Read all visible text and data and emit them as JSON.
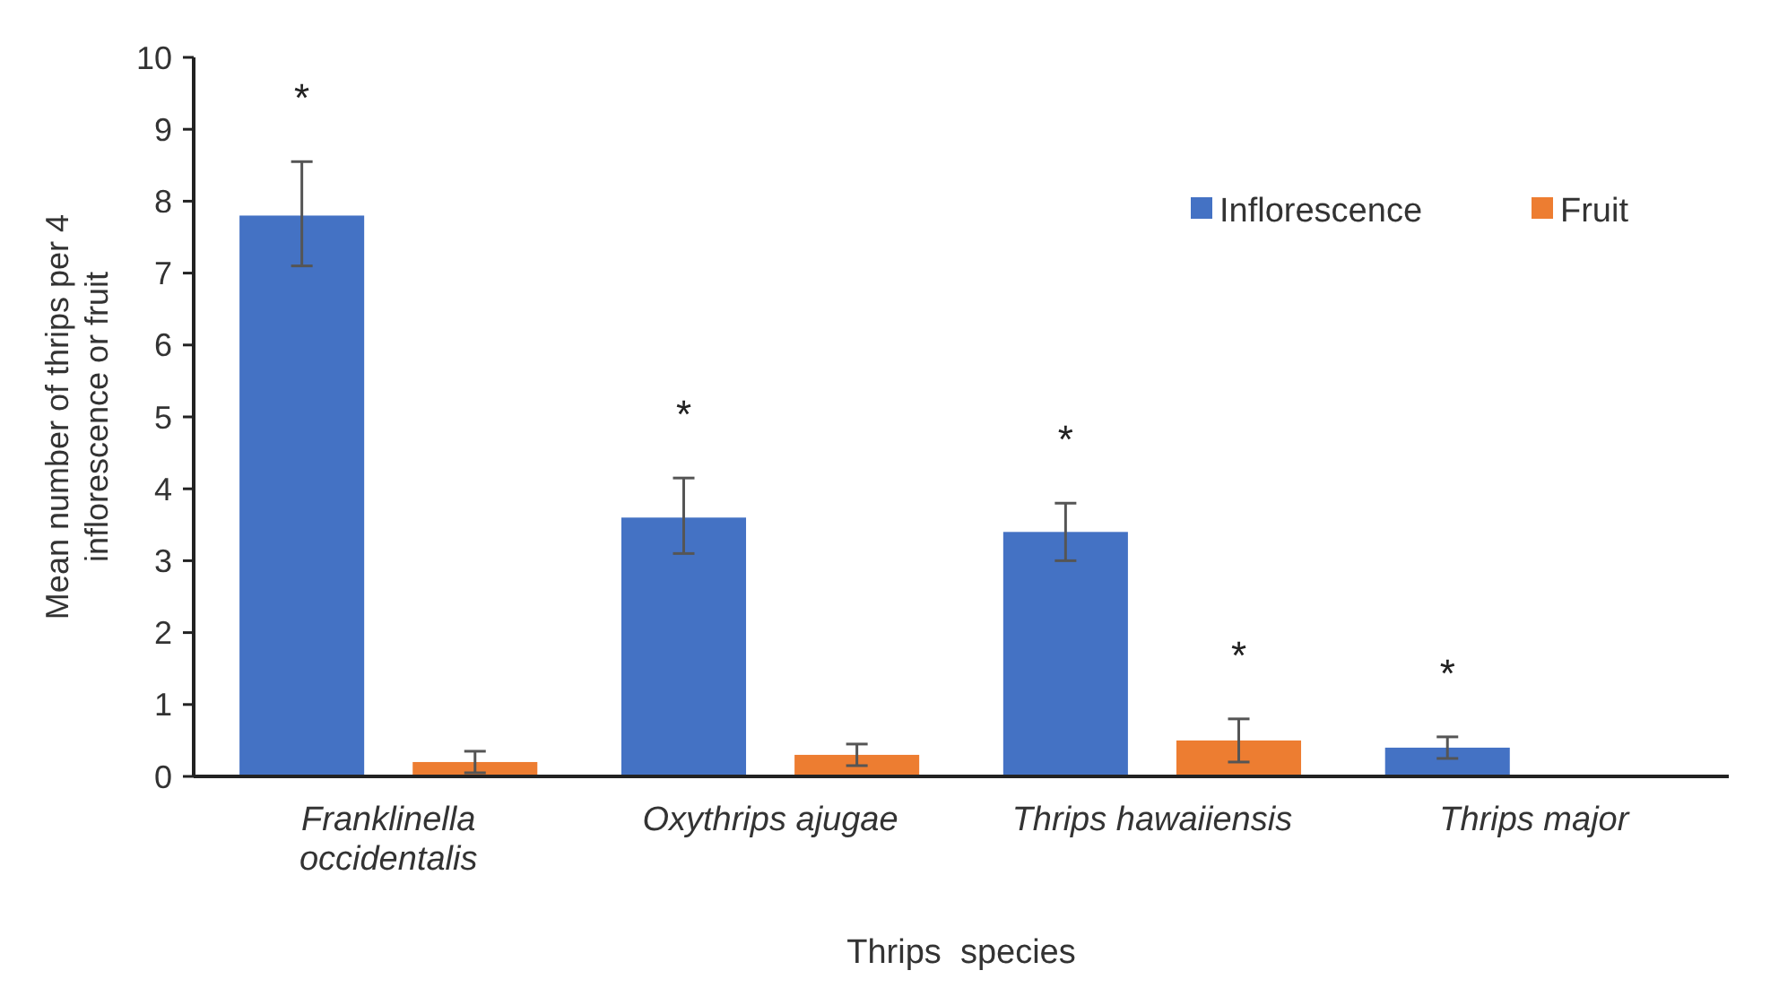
{
  "chart_data": {
    "type": "bar",
    "xlabel": "Thrips  species",
    "ylabel": "Mean number of thrips per 4 inflorescence or fruit",
    "categories": [
      "Franklinella occidentalis",
      "Oxythrips ajugae",
      "Thrips hawaiiensis",
      "Thrips major"
    ],
    "series": [
      {
        "name": "Inflorescence",
        "color": "#4472c4",
        "values": [
          7.8,
          3.6,
          3.4,
          0.4
        ],
        "errors": [
          [
            7.1,
            8.55
          ],
          [
            3.1,
            4.15
          ],
          [
            3.0,
            3.8
          ],
          [
            0.25,
            0.55
          ]
        ],
        "value_labels": [
          "*",
          "*",
          "*",
          "*"
        ]
      },
      {
        "name": "Fruit",
        "color": "#ed7d31",
        "values": [
          0.2,
          0.3,
          0.5,
          null
        ],
        "errors": [
          [
            0.05,
            0.35
          ],
          [
            0.15,
            0.45
          ],
          [
            0.2,
            0.8
          ],
          null
        ],
        "value_labels": [
          null,
          null,
          "*",
          null
        ]
      }
    ],
    "ylim": [
      0,
      10
    ],
    "yticks": [
      0,
      1,
      2,
      3,
      4,
      5,
      6,
      7,
      8,
      9,
      10
    ],
    "grid": false,
    "legend": "top right"
  }
}
